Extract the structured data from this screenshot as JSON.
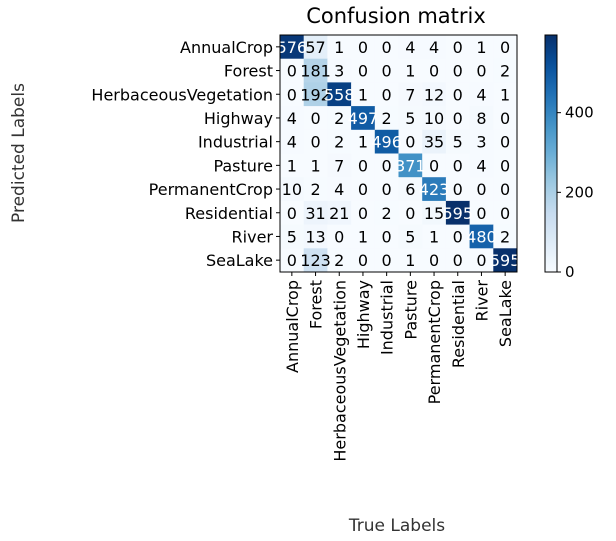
{
  "chart_data": {
    "type": "heatmap",
    "title": "Confusion matrix",
    "xlabel": "True Labels",
    "ylabel": "Predicted Labels",
    "x_categories": [
      "AnnualCrop",
      "Forest",
      "HerbaceousVegetation",
      "Highway",
      "Industrial",
      "Pasture",
      "PermanentCrop",
      "Residential",
      "River",
      "SeaLake"
    ],
    "y_categories": [
      "AnnualCrop",
      "Forest",
      "HerbaceousVegetation",
      "Highway",
      "Industrial",
      "Pasture",
      "PermanentCrop",
      "Residential",
      "River",
      "SeaLake"
    ],
    "cell_labels": [
      [
        "576",
        "57",
        "1",
        "0",
        "0",
        "4",
        "4",
        "0",
        "1",
        "0"
      ],
      [
        "0",
        "181",
        "3",
        "0",
        "0",
        "1",
        "0",
        "0",
        "0",
        "2"
      ],
      [
        "0",
        "192",
        "558",
        "1",
        "0",
        "7",
        "12",
        "0",
        "4",
        "1"
      ],
      [
        "4",
        "0",
        "2",
        "497",
        "2",
        "5",
        "10",
        "0",
        "8",
        "0"
      ],
      [
        "4",
        "0",
        "2",
        "1",
        "496",
        "0",
        "35",
        "5",
        "3",
        "0"
      ],
      [
        "1",
        "1",
        "7",
        "0",
        "0",
        "371",
        "0",
        "0",
        "4",
        "0"
      ],
      [
        "10",
        "2",
        "4",
        "0",
        "0",
        "6",
        "423",
        "0",
        "0",
        "0"
      ],
      [
        "0",
        "31",
        "21",
        "0",
        "2",
        "0",
        "15",
        "595",
        "0",
        "0"
      ],
      [
        "5",
        "13",
        "0",
        "1",
        "0",
        "5",
        "1",
        "0",
        "480",
        "2"
      ],
      [
        "0",
        "123",
        "2",
        "0",
        "0",
        "1",
        "0",
        "0",
        "0",
        "595"
      ]
    ],
    "values": [
      [
        576,
        57,
        1,
        0,
        0,
        4,
        4,
        0,
        1,
        0
      ],
      [
        0,
        181,
        3,
        0,
        0,
        1,
        0,
        0,
        0,
        2
      ],
      [
        0,
        192,
        558,
        1,
        0,
        7,
        12,
        0,
        4,
        1
      ],
      [
        4,
        0,
        2,
        497,
        2,
        5,
        10,
        0,
        8,
        0
      ],
      [
        4,
        0,
        2,
        1,
        496,
        0,
        35,
        5,
        3,
        0
      ],
      [
        1,
        1,
        7,
        0,
        0,
        371,
        0,
        0,
        4,
        0
      ],
      [
        10,
        2,
        4,
        0,
        0,
        6,
        423,
        0,
        0,
        0
      ],
      [
        0,
        31,
        21,
        0,
        2,
        0,
        15,
        595,
        0,
        0
      ],
      [
        5,
        13,
        0,
        1,
        0,
        5,
        1,
        0,
        480,
        2
      ],
      [
        0,
        123,
        2,
        0,
        0,
        1,
        0,
        0,
        0,
        595
      ]
    ],
    "colorbar": {
      "range": [
        0,
        595
      ],
      "ticks": [
        0,
        200,
        400
      ],
      "tick_labels": [
        "0",
        "200",
        "400"
      ],
      "colormap": "Blues",
      "low_color": "#f7fbff",
      "high_color": "#08306b"
    },
    "grid": false
  }
}
